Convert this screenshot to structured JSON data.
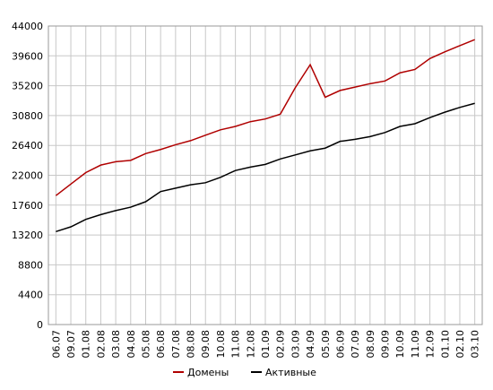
{
  "chart_data": {
    "type": "line",
    "categories": [
      "06.07",
      "09.07",
      "01.08",
      "02.08",
      "03.08",
      "04.08",
      "05.08",
      "06.08",
      "07.08",
      "08.08",
      "09.08",
      "10.08",
      "11.08",
      "12.08",
      "01.09",
      "02.09",
      "03.09",
      "04.09",
      "05.09",
      "06.09",
      "07.09",
      "08.09",
      "09.09",
      "10.09",
      "11.09",
      "12.09",
      "01.10",
      "02.10",
      "03.10"
    ],
    "series": [
      {
        "name": "Домены",
        "color": "#b00000",
        "values": [
          19000,
          20700,
          22400,
          23500,
          24000,
          24200,
          25200,
          25800,
          26500,
          27100,
          27900,
          28700,
          29200,
          29900,
          30300,
          31000,
          34900,
          38300,
          33500,
          34500,
          35000,
          35500,
          35900,
          37100,
          37600,
          39200,
          40200,
          41100,
          42000
        ]
      },
      {
        "name": "Активные",
        "color": "#000000",
        "values": [
          13700,
          14400,
          15500,
          16200,
          16800,
          17300,
          18100,
          19600,
          20100,
          20600,
          20900,
          21700,
          22700,
          23200,
          23600,
          24400,
          25000,
          25600,
          26000,
          27000,
          27300,
          27700,
          28300,
          29200,
          29600,
          30500,
          31300,
          32000,
          32600
        ]
      }
    ],
    "ylim": [
      0,
      44000
    ],
    "yticks": [
      0,
      4400,
      8800,
      13200,
      17600,
      22000,
      26400,
      30800,
      35200,
      39600,
      44000
    ],
    "grid": true,
    "legend": "bottom"
  }
}
